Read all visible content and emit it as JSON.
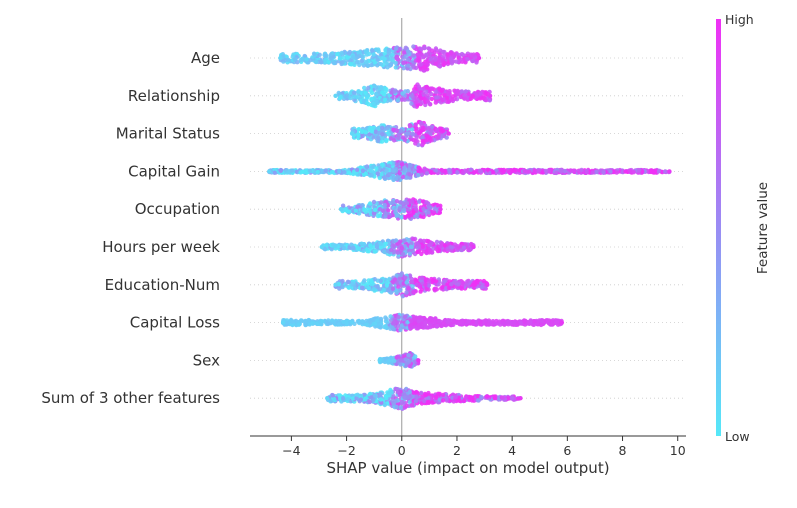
{
  "chart_data": {
    "type": "scatter",
    "subtype": "beeswarm",
    "title": "",
    "xlabel": "SHAP value (impact on model output)",
    "ylabel": "",
    "xlim": [
      -5.5,
      10.3
    ],
    "xticks": [
      -4,
      -2,
      0,
      2,
      4,
      6,
      8,
      10
    ],
    "xtick_labels": [
      "−4",
      "−2",
      "0",
      "2",
      "4",
      "6",
      "8",
      "10"
    ],
    "colorbar": {
      "label": "Feature value",
      "high": "High",
      "low": "Low",
      "low_color": "#55e8f8",
      "high_color": "#f030f5"
    },
    "features": [
      {
        "name": "Age",
        "min": -4.4,
        "max": 2.8,
        "density": [
          [
            -3.0,
            0.35
          ],
          [
            -1.5,
            0.55
          ],
          [
            -0.5,
            0.75
          ],
          [
            0.3,
            0.95
          ],
          [
            0.8,
            1.0
          ],
          [
            1.3,
            0.7
          ],
          [
            2.0,
            0.35
          ]
        ],
        "color_split": 0.1,
        "mix": 0.15
      },
      {
        "name": "Relationship",
        "min": -2.4,
        "max": 3.2,
        "density": [
          [
            -2.0,
            0.25
          ],
          [
            -1.0,
            0.85
          ],
          [
            -0.5,
            0.55
          ],
          [
            0.1,
            0.3
          ],
          [
            0.5,
            0.9
          ],
          [
            1.2,
            0.6
          ],
          [
            2.2,
            0.35
          ]
        ],
        "color_split": 0.0,
        "mix": 0.2
      },
      {
        "name": "Marital Status",
        "min": -1.8,
        "max": 1.7,
        "density": [
          [
            -1.3,
            0.4
          ],
          [
            -0.7,
            0.65
          ],
          [
            0.0,
            0.5
          ],
          [
            0.7,
            0.95
          ],
          [
            1.3,
            0.4
          ]
        ],
        "color_split": 0.0,
        "mix": 0.35
      },
      {
        "name": "Capital Gain",
        "min": -4.8,
        "max": 9.7,
        "density": [
          [
            -4.0,
            0.1
          ],
          [
            -2.0,
            0.12
          ],
          [
            -0.15,
            0.75
          ],
          [
            1.0,
            0.12
          ],
          [
            5.0,
            0.12
          ],
          [
            9.0,
            0.1
          ]
        ],
        "color_split": 0.2,
        "mix": 0.35
      },
      {
        "name": "Occupation",
        "min": -2.2,
        "max": 1.4,
        "density": [
          [
            -1.6,
            0.3
          ],
          [
            -0.7,
            0.7
          ],
          [
            0.0,
            0.75
          ],
          [
            0.6,
            0.8
          ],
          [
            1.1,
            0.35
          ]
        ],
        "color_split": -0.3,
        "mix": 0.45
      },
      {
        "name": "Hours per week",
        "min": -2.9,
        "max": 2.6,
        "density": [
          [
            -2.0,
            0.2
          ],
          [
            -0.8,
            0.4
          ],
          [
            0.0,
            0.85
          ],
          [
            0.8,
            0.5
          ],
          [
            2.0,
            0.25
          ]
        ],
        "color_split": 0.0,
        "mix": 0.25
      },
      {
        "name": "Education-Num",
        "min": -2.4,
        "max": 3.1,
        "density": [
          [
            -1.5,
            0.3
          ],
          [
            -0.3,
            0.65
          ],
          [
            0.0,
            0.9
          ],
          [
            0.7,
            0.55
          ],
          [
            2.0,
            0.3
          ]
        ],
        "color_split": 0.0,
        "mix": 0.3
      },
      {
        "name": "Capital Loss",
        "min": -4.3,
        "max": 5.8,
        "density": [
          [
            -3.5,
            0.2
          ],
          [
            -1.5,
            0.12
          ],
          [
            -0.1,
            0.6
          ],
          [
            2.0,
            0.15
          ],
          [
            5.0,
            0.18
          ]
        ],
        "color_split": -0.1,
        "mix": 0.05
      },
      {
        "name": "Sex",
        "min": -0.8,
        "max": 0.6,
        "density": [
          [
            -0.6,
            0.15
          ],
          [
            0.0,
            0.35
          ],
          [
            0.3,
            0.6
          ],
          [
            0.5,
            0.3
          ]
        ],
        "color_split": 0.15,
        "mix": 0.05
      },
      {
        "name": "Sum of 3 other features",
        "min": -2.7,
        "max": 4.3,
        "density": [
          [
            -2.0,
            0.25
          ],
          [
            -1.0,
            0.35
          ],
          [
            0.0,
            0.85
          ],
          [
            0.6,
            0.45
          ],
          [
            2.0,
            0.25
          ],
          [
            3.5,
            0.12
          ]
        ],
        "color_split": 0.0,
        "mix": 0.45
      }
    ]
  }
}
